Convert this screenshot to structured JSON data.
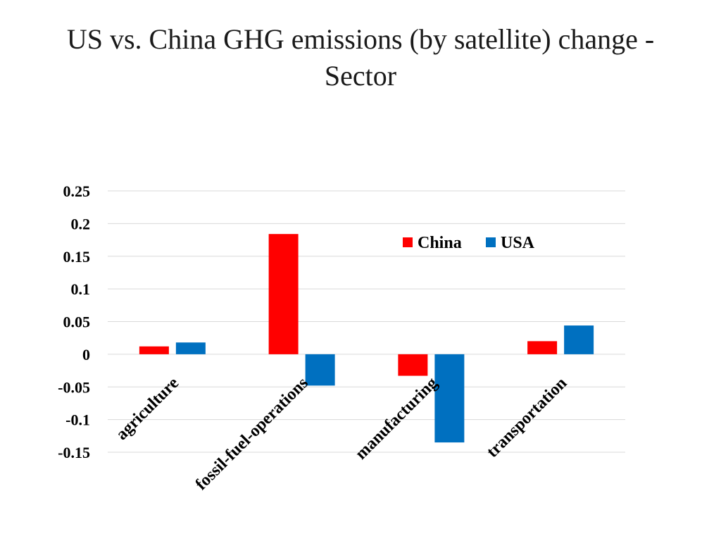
{
  "title_line1": "US vs. China GHG emissions (by satellite) change -",
  "title_line2": "Sector",
  "chart_data": {
    "type": "bar",
    "title": "US vs. China GHG emissions (by satellite) change - Sector",
    "categories": [
      "agriculture",
      "fossil-fuel-operations",
      "manufacturing",
      "transportation"
    ],
    "series": [
      {
        "name": "China",
        "color": "#ff0000",
        "values": [
          0.012,
          0.184,
          -0.033,
          0.02
        ]
      },
      {
        "name": "USA",
        "color": "#0070c0",
        "values": [
          0.018,
          -0.048,
          -0.135,
          0.044
        ]
      }
    ],
    "yticks": [
      "0.25",
      "0.2",
      "0.15",
      "0.1",
      "0.05",
      "0",
      "-0.05",
      "-0.1",
      "-0.15"
    ],
    "ylim": [
      -0.15,
      0.25
    ],
    "grid": true,
    "legend_position": "top-right",
    "xlabel": "",
    "ylabel": ""
  }
}
